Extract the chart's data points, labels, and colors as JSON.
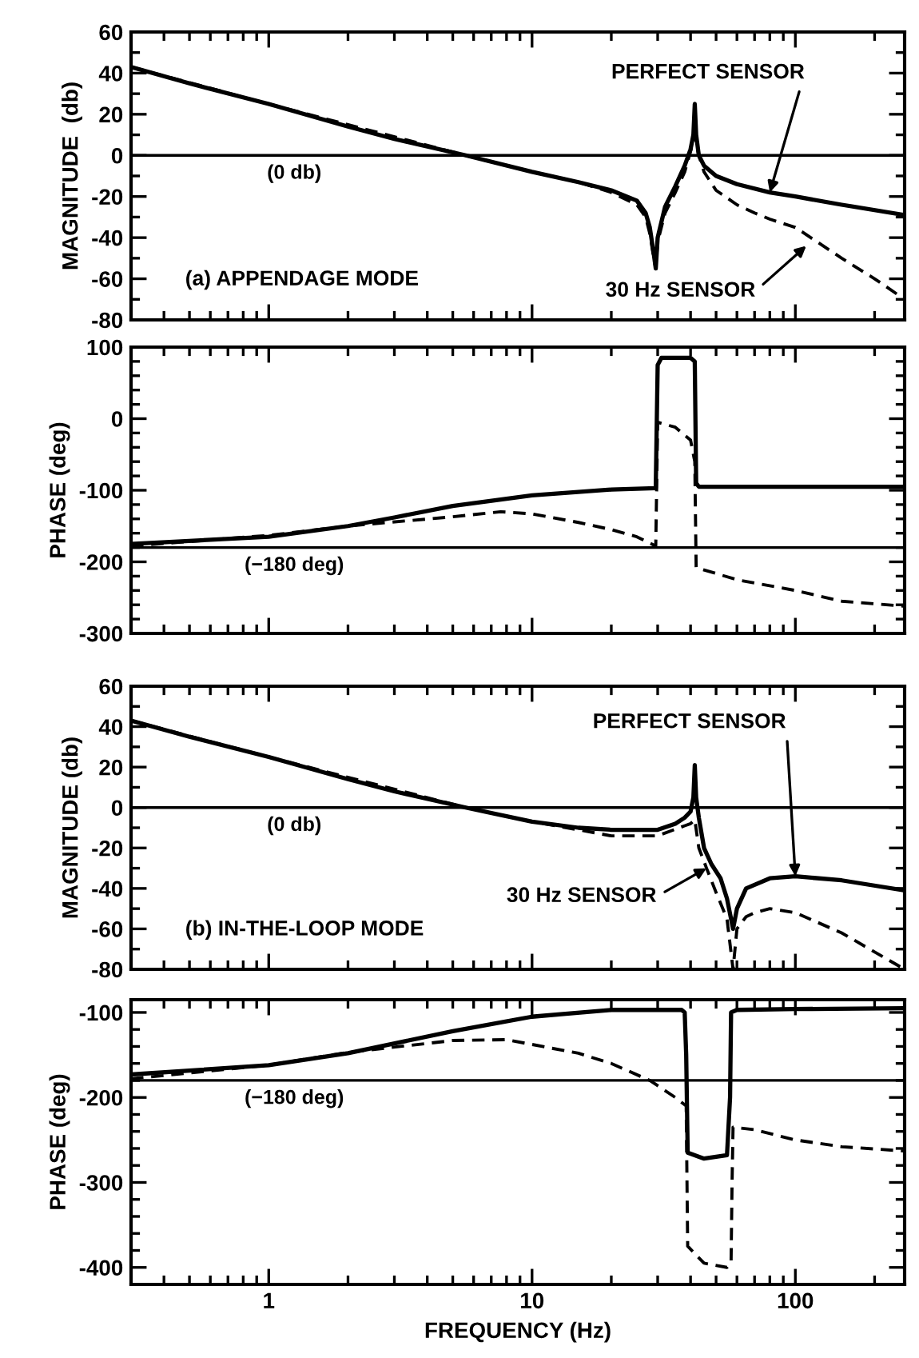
{
  "chart_data": [
    {
      "type": "line",
      "ylabel": "MAGNITUDE  (db)",
      "xlim": [
        0.3,
        260
      ],
      "ylim": [
        -80,
        60
      ],
      "log": "x",
      "tick_labels": "y",
      "grid": false,
      "legend": false,
      "xticks": [
        1,
        10,
        100
      ],
      "yticks": [
        -80,
        -60,
        -40,
        -20,
        0,
        20,
        40,
        60
      ],
      "series": [
        {
          "color": "#000000",
          "line_style": "solid",
          "x": [
            0.3,
            0.5,
            1,
            2,
            3,
            5.6,
            10,
            15,
            20,
            25,
            27,
            28,
            29,
            29.5,
            30,
            32,
            35,
            38,
            40,
            41,
            41.5,
            42,
            43,
            45,
            50,
            60,
            80,
            100,
            150,
            260
          ],
          "values": [
            43,
            35,
            25,
            14,
            8,
            0,
            -8,
            -13,
            -17,
            -22,
            -28,
            -35,
            -48,
            -55,
            -40,
            -25,
            -15,
            -5,
            3,
            10,
            25,
            10,
            0,
            -5,
            -10,
            -14,
            -18,
            -20,
            -24,
            -29
          ]
        },
        {
          "color": "#000000",
          "line_style": "dashed",
          "x": [
            0.3,
            1,
            5.6,
            10,
            15,
            20,
            25,
            27,
            28,
            29,
            29.5,
            30,
            32,
            35,
            38,
            40,
            41.5,
            43,
            45,
            50,
            60,
            70,
            80,
            100,
            150,
            200,
            260
          ],
          "values": [
            43,
            25,
            0,
            -8,
            -13,
            -18,
            -24,
            -30,
            -38,
            -50,
            -55,
            -42,
            -28,
            -18,
            -8,
            2,
            10,
            0,
            -8,
            -17,
            -24,
            -28,
            -31,
            -35,
            -50,
            -60,
            -70
          ]
        }
      ],
      "ref_lines": [
        {
          "axis": "y",
          "value": 0,
          "label": "(0 db)",
          "color": "#000000",
          "line_style": "solid"
        }
      ],
      "annotations": [
        "(a) APPENDAGE MODE",
        {
          "text": "PERFECT SENSOR",
          "x": 80,
          "y": -18
        },
        {
          "text": "30 Hz SENSOR",
          "x": 110,
          "y": -44
        }
      ]
    },
    {
      "type": "line",
      "ylabel": "PHASE (deg)",
      "xlim": [
        0.3,
        260
      ],
      "ylim": [
        -300,
        100
      ],
      "log": "x",
      "tick_labels": "y",
      "grid": false,
      "legend": false,
      "xticks": [
        1,
        10,
        100
      ],
      "yticks": [
        -300,
        -200,
        -100,
        0,
        100
      ],
      "series": [
        {
          "color": "#000000",
          "line_style": "solid",
          "x": [
            0.3,
            1,
            2,
            3,
            5,
            10,
            20,
            29.5,
            30,
            31,
            40,
            41.5,
            42,
            43,
            60,
            100,
            260
          ],
          "values": [
            -175,
            -165,
            -150,
            -138,
            -122,
            -107,
            -99,
            -97,
            75,
            85,
            85,
            80,
            -90,
            -95,
            -95,
            -95,
            -95
          ]
        },
        {
          "color": "#000000",
          "line_style": "dashed",
          "x": [
            0.3,
            1,
            2,
            5,
            7.6,
            10,
            15,
            20,
            25,
            29.5,
            30,
            35,
            40,
            41.5,
            42,
            60,
            100,
            150,
            260
          ],
          "values": [
            -178,
            -163,
            -150,
            -137,
            -130,
            -133,
            -145,
            -155,
            -165,
            -178,
            -5,
            -12,
            -30,
            -60,
            -208,
            -225,
            -240,
            -255,
            -262
          ]
        }
      ],
      "ref_lines": [
        {
          "axis": "y",
          "value": -180,
          "label": "(−180 deg)",
          "color": "#000000",
          "line_style": "solid"
        }
      ]
    },
    {
      "type": "line",
      "ylabel": "MAGNITUDE (db)",
      "xlim": [
        0.3,
        260
      ],
      "ylim": [
        -80,
        60
      ],
      "log": "x",
      "tick_labels": "y",
      "grid": false,
      "legend": false,
      "xticks": [
        1,
        10,
        100
      ],
      "yticks": [
        -80,
        -60,
        -40,
        -20,
        0,
        20,
        40,
        60
      ],
      "series": [
        {
          "color": "#000000",
          "line_style": "solid",
          "x": [
            0.3,
            0.5,
            1,
            2,
            3,
            5.6,
            10,
            15,
            20,
            30,
            35,
            38,
            40,
            41,
            41.5,
            42,
            43,
            45,
            48,
            52,
            55,
            58,
            60,
            65,
            80,
            100,
            150,
            260
          ],
          "values": [
            43,
            35,
            25,
            14,
            8,
            0,
            -7,
            -10,
            -11,
            -11,
            -8,
            -5,
            -2,
            5,
            21,
            5,
            -5,
            -20,
            -28,
            -35,
            -45,
            -60,
            -50,
            -40,
            -35,
            -34,
            -36,
            -41
          ]
        },
        {
          "color": "#000000",
          "line_style": "dashed",
          "x": [
            0.3,
            1,
            5.6,
            10,
            15,
            20,
            30,
            38,
            40,
            41.5,
            43,
            46,
            50,
            55,
            58,
            60,
            65,
            70,
            80,
            100,
            150,
            260
          ],
          "values": [
            43,
            25,
            0,
            -7,
            -11,
            -14,
            -14,
            -9,
            -8,
            -6,
            -20,
            -30,
            -42,
            -55,
            -80,
            -60,
            -54,
            -52,
            -50,
            -52,
            -62,
            -80
          ]
        }
      ],
      "ref_lines": [
        {
          "axis": "y",
          "value": 0,
          "label": "(0 db)",
          "color": "#000000",
          "line_style": "solid"
        }
      ],
      "annotations": [
        "(b) IN-THE-LOOP MODE",
        {
          "text": "PERFECT SENSOR",
          "x": 100,
          "y": -34
        },
        {
          "text": "30 Hz SENSOR",
          "x": 46,
          "y": -30
        }
      ]
    },
    {
      "type": "line",
      "xlabel": "FREQUENCY (Hz)",
      "ylabel": "PHASE (deg)",
      "xlim": [
        0.3,
        260
      ],
      "ylim": [
        -420,
        -85
      ],
      "log": "x",
      "grid": false,
      "legend": false,
      "xticks": [
        1,
        10,
        100
      ],
      "yticks": [
        -400,
        -300,
        -200,
        -100
      ],
      "series": [
        {
          "color": "#000000",
          "line_style": "solid",
          "x": [
            0.3,
            1,
            2,
            5,
            10,
            20,
            37,
            38,
            38.5,
            39,
            45,
            55,
            56.5,
            57,
            60,
            100,
            260
          ],
          "values": [
            -173,
            -162,
            -148,
            -122,
            -105,
            -97,
            -97,
            -100,
            -150,
            -265,
            -272,
            -268,
            -200,
            -100,
            -97,
            -96,
            -95
          ]
        },
        {
          "color": "#000000",
          "line_style": "dashed",
          "x": [
            0.3,
            1,
            2,
            5,
            8,
            15,
            20,
            28,
            35,
            38.5,
            39,
            45,
            55,
            57,
            57.5,
            58,
            70,
            100,
            150,
            260
          ],
          "values": [
            -178,
            -162,
            -147,
            -133,
            -132,
            -148,
            -160,
            -180,
            -200,
            -210,
            -375,
            -395,
            -400,
            -395,
            -300,
            -235,
            -238,
            -250,
            -258,
            -263
          ]
        }
      ],
      "ref_lines": [
        {
          "axis": "y",
          "value": -180,
          "label": "(−180 deg)",
          "color": "#000000",
          "line_style": "solid"
        }
      ]
    }
  ]
}
